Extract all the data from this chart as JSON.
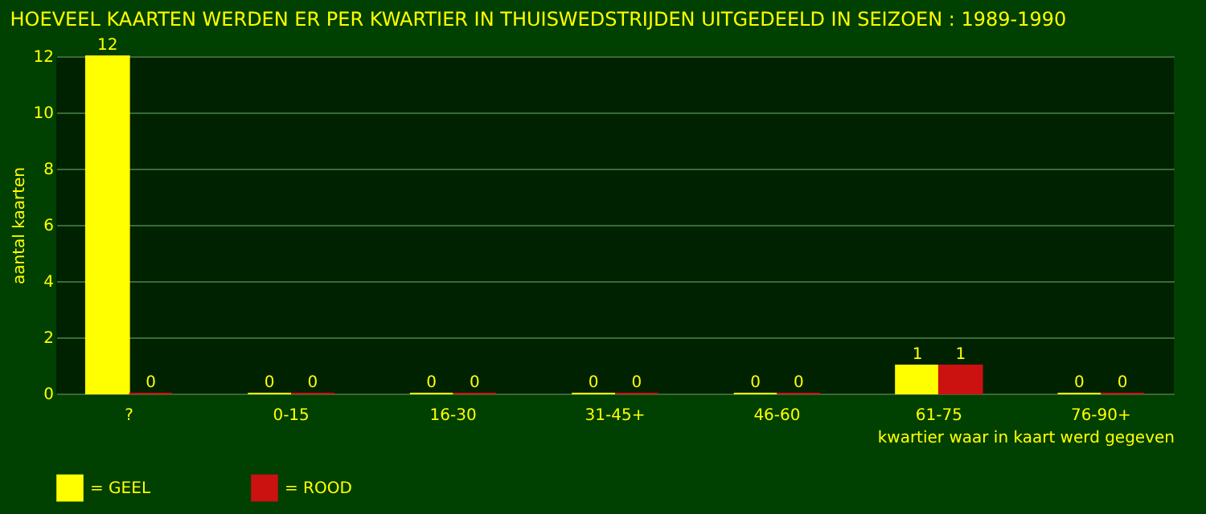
{
  "chart_data": {
    "type": "bar",
    "title": "HOEVEEL KAARTEN WERDEN ER PER KWARTIER IN THUISWEDSTRIJDEN UITGEDEELD IN SEIZOEN : 1989-1990",
    "xlabel": "kwartier waar in kaart werd gegeven",
    "ylabel": "aantal kaarten",
    "categories": [
      "?",
      "0-15",
      "16-30",
      "31-45+",
      "46-60",
      "61-75",
      "76-90+"
    ],
    "series": [
      {
        "name": "= GEEL",
        "color": "#ffff00",
        "values": [
          12,
          0,
          0,
          0,
          0,
          1,
          0
        ]
      },
      {
        "name": "= ROOD",
        "color": "#cc1111",
        "values": [
          0,
          0,
          0,
          0,
          0,
          1,
          0
        ]
      }
    ],
    "ylim": [
      0,
      12
    ],
    "yticks": [
      0,
      2,
      4,
      6,
      8,
      10,
      12
    ],
    "grid": "y",
    "legend": "bottom",
    "data_labels": true
  }
}
